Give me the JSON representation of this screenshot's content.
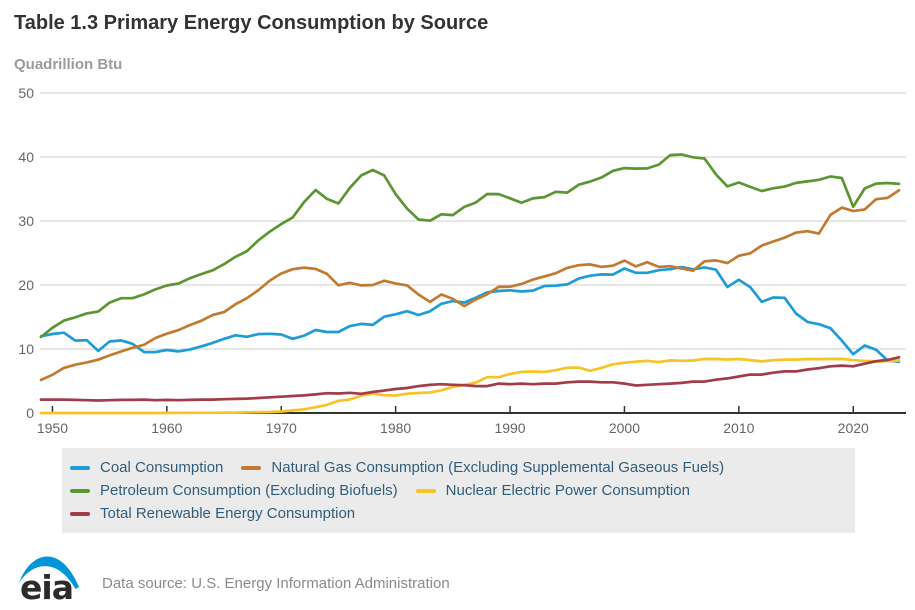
{
  "header": {
    "title": "Table 1.3 Primary Energy Consumption by Source",
    "units": "Quadrillion Btu"
  },
  "chart_data": {
    "type": "line",
    "title": "Table 1.3 Primary Energy Consumption by Source",
    "ylabel": "Quadrillion Btu",
    "xlabel": "",
    "ylim": [
      0,
      50
    ],
    "y_ticks": [
      0,
      10,
      20,
      30,
      40,
      50
    ],
    "x_ticks": [
      1950,
      1960,
      1970,
      1980,
      1990,
      2000,
      2010,
      2020
    ],
    "grid": "horizontal",
    "legend_position": "bottom",
    "x": [
      1949,
      1950,
      1951,
      1952,
      1953,
      1954,
      1955,
      1956,
      1957,
      1958,
      1959,
      1960,
      1961,
      1962,
      1963,
      1964,
      1965,
      1966,
      1967,
      1968,
      1969,
      1970,
      1971,
      1972,
      1973,
      1974,
      1975,
      1976,
      1977,
      1978,
      1979,
      1980,
      1981,
      1982,
      1983,
      1984,
      1985,
      1986,
      1987,
      1988,
      1989,
      1990,
      1991,
      1992,
      1993,
      1994,
      1995,
      1996,
      1997,
      1998,
      1999,
      2000,
      2001,
      2002,
      2003,
      2004,
      2005,
      2006,
      2007,
      2008,
      2009,
      2010,
      2011,
      2012,
      2013,
      2014,
      2015,
      2016,
      2017,
      2018,
      2019,
      2020,
      2021,
      2022,
      2023,
      2024
    ],
    "series": [
      {
        "name": "Coal Consumption",
        "color": "#1e9cd8",
        "values": [
          11.98,
          12.35,
          12.55,
          11.31,
          11.37,
          9.71,
          11.17,
          11.35,
          10.82,
          9.53,
          9.52,
          9.84,
          9.62,
          9.91,
          10.41,
          10.96,
          11.58,
          12.14,
          11.91,
          12.33,
          12.38,
          12.26,
          11.6,
          12.08,
          12.97,
          12.66,
          12.66,
          13.58,
          13.92,
          13.77,
          15.04,
          15.42,
          15.91,
          15.32,
          15.89,
          17.07,
          17.48,
          17.26,
          18.01,
          18.85,
          19.07,
          19.17,
          18.99,
          19.12,
          19.84,
          19.91,
          20.09,
          21.0,
          21.45,
          21.66,
          21.62,
          22.58,
          21.91,
          21.9,
          22.32,
          22.47,
          22.8,
          22.45,
          22.75,
          22.39,
          19.69,
          20.83,
          19.66,
          17.38,
          18.04,
          18.0,
          15.55,
          14.23,
          13.87,
          13.25,
          11.32,
          9.18,
          10.55,
          9.87,
          8.2,
          8.0
        ]
      },
      {
        "name": "Natural Gas Consumption (Excluding Supplemental Gaseous Fuels)",
        "color": "#c27a30",
        "values": [
          5.15,
          5.97,
          7.05,
          7.55,
          7.91,
          8.33,
          9.0,
          9.61,
          10.19,
          10.66,
          11.72,
          12.39,
          12.93,
          13.73,
          14.4,
          15.29,
          15.77,
          17.0,
          17.94,
          19.21,
          20.68,
          21.79,
          22.47,
          22.7,
          22.51,
          21.73,
          19.95,
          20.35,
          19.93,
          20.0,
          20.67,
          20.24,
          19.93,
          18.51,
          17.36,
          18.51,
          17.83,
          16.71,
          17.74,
          18.55,
          19.71,
          19.73,
          20.15,
          20.84,
          21.35,
          21.84,
          22.67,
          23.09,
          23.22,
          22.83,
          23.01,
          23.82,
          22.9,
          23.56,
          22.83,
          22.93,
          22.56,
          22.24,
          23.7,
          23.84,
          23.42,
          24.57,
          24.95,
          26.15,
          26.8,
          27.39,
          28.19,
          28.4,
          28.03,
          30.96,
          32.1,
          31.54,
          31.82,
          33.41,
          33.61,
          34.8
        ]
      },
      {
        "name": "Petroleum Consumption (Excluding Biofuels)",
        "color": "#5a9632",
        "values": [
          11.88,
          13.32,
          14.43,
          14.96,
          15.56,
          15.84,
          17.25,
          17.94,
          17.93,
          18.53,
          19.32,
          19.92,
          20.22,
          21.05,
          21.7,
          22.3,
          23.25,
          24.4,
          25.28,
          26.98,
          28.34,
          29.52,
          30.56,
          32.95,
          34.84,
          33.45,
          32.73,
          35.18,
          37.12,
          37.97,
          37.12,
          34.2,
          31.93,
          30.23,
          30.05,
          31.05,
          30.92,
          32.2,
          32.87,
          34.22,
          34.21,
          33.55,
          32.85,
          33.53,
          33.74,
          34.56,
          34.44,
          35.67,
          36.16,
          36.82,
          37.84,
          38.26,
          38.19,
          38.22,
          38.81,
          40.29,
          40.39,
          39.96,
          39.77,
          37.28,
          35.4,
          36.01,
          35.33,
          34.68,
          35.11,
          35.37,
          35.95,
          36.19,
          36.43,
          36.95,
          36.72,
          32.23,
          35.08,
          35.85,
          35.93,
          35.8
        ]
      },
      {
        "name": "Nuclear Electric Power Consumption",
        "color": "#f6c426",
        "values": [
          0,
          0,
          0,
          0,
          0,
          0,
          0,
          0,
          0,
          0,
          0,
          0.01,
          0.02,
          0.03,
          0.03,
          0.03,
          0.04,
          0.06,
          0.09,
          0.14,
          0.15,
          0.24,
          0.41,
          0.58,
          0.91,
          1.27,
          1.9,
          2.11,
          2.7,
          3.02,
          2.78,
          2.74,
          3.01,
          3.13,
          3.2,
          3.55,
          4.08,
          4.38,
          4.75,
          5.59,
          5.6,
          6.1,
          6.42,
          6.48,
          6.41,
          6.69,
          7.08,
          7.09,
          6.6,
          7.07,
          7.61,
          7.86,
          8.03,
          8.15,
          7.96,
          8.22,
          8.16,
          8.21,
          8.46,
          8.43,
          8.36,
          8.43,
          8.27,
          8.06,
          8.27,
          8.34,
          8.34,
          8.43,
          8.42,
          8.44,
          8.46,
          8.25,
          8.13,
          8.05,
          8.1,
          8.2
        ]
      },
      {
        "name": "Total Renewable Energy Consumption",
        "color": "#a23b4a",
        "values": [
          2.1,
          2.1,
          2.1,
          2.05,
          2.0,
          1.95,
          2.0,
          2.05,
          2.05,
          2.1,
          2.0,
          2.05,
          2.0,
          2.05,
          2.1,
          2.1,
          2.15,
          2.2,
          2.25,
          2.35,
          2.45,
          2.55,
          2.65,
          2.75,
          2.9,
          3.1,
          3.05,
          3.15,
          3.0,
          3.3,
          3.5,
          3.75,
          3.9,
          4.2,
          4.4,
          4.5,
          4.4,
          4.35,
          4.2,
          4.2,
          4.6,
          4.5,
          4.6,
          4.5,
          4.6,
          4.6,
          4.8,
          4.9,
          4.9,
          4.8,
          4.8,
          4.6,
          4.3,
          4.4,
          4.5,
          4.6,
          4.7,
          4.9,
          4.9,
          5.2,
          5.4,
          5.7,
          6.0,
          6.0,
          6.3,
          6.5,
          6.5,
          6.8,
          7.0,
          7.3,
          7.4,
          7.3,
          7.7,
          8.1,
          8.3,
          8.7
        ]
      }
    ]
  },
  "colors": {
    "title_text": "#333333",
    "subtitle_text": "#9b9b9b",
    "axis_text": "#666666",
    "gridline": "#cfcfcf",
    "axis_line": "#333333",
    "legend_background": "#ebebeb",
    "legend_text": "#2f5e7c",
    "footer_text": "#8a8a8a",
    "logo_blue": "#0096d7"
  },
  "footer": {
    "source": "Data source: U.S. Energy Information Administration",
    "logo_text": "eia"
  }
}
